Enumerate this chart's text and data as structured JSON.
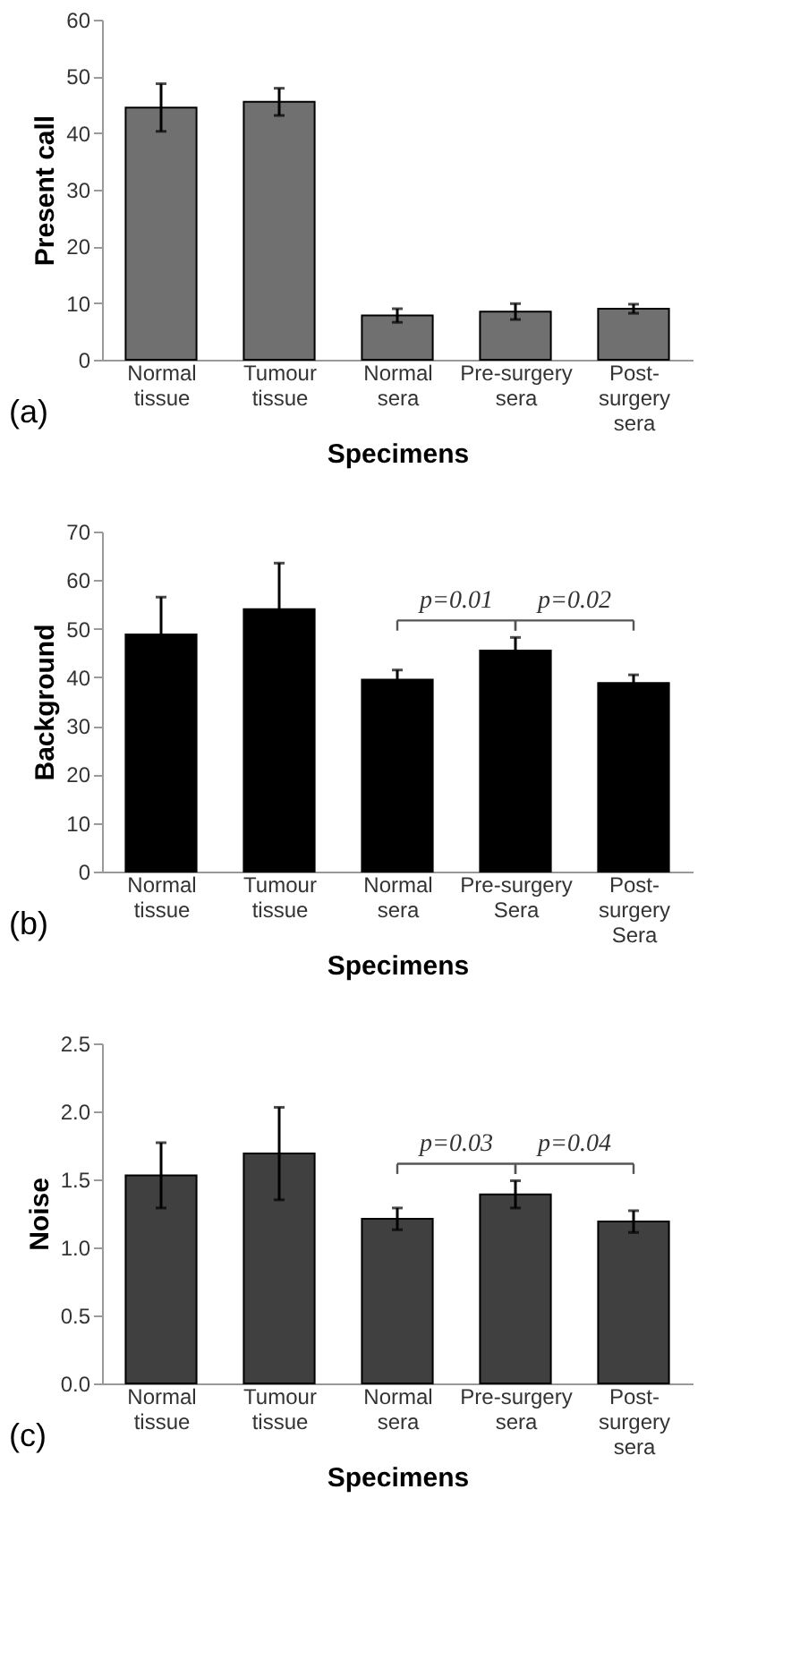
{
  "chart_data": [
    {
      "type": "bar",
      "xlabel": "Specimens",
      "ylabel": "Present call",
      "categories": [
        "Normal\ntissue",
        "Tumour\ntissue",
        "Normal\nsera",
        "Pre-surgery\nsera",
        "Post-\nsurgery\nsera"
      ],
      "values": [
        44.5,
        45.5,
        7.8,
        8.5,
        9.0
      ],
      "errors": [
        4.2,
        2.4,
        1.2,
        1.4,
        0.8
      ],
      "color": "#707070",
      "ylim": [
        0,
        60
      ],
      "yticks": [
        0,
        10,
        20,
        30,
        40,
        50,
        60
      ],
      "grid": false,
      "annotations": [
        "(a)"
      ]
    },
    {
      "type": "bar",
      "xlabel": "Specimens",
      "ylabel": "Background",
      "categories": [
        "Normal\ntissue",
        "Tumour\ntissue",
        "Normal\nsera",
        "Pre-surgery\nSera",
        "Post-\nsurgery\nSera"
      ],
      "values": [
        48.8,
        54.0,
        39.5,
        45.5,
        38.8
      ],
      "errors": [
        [
          48.8,
          56.5
        ],
        [
          54.0,
          63.5
        ],
        [
          39.5,
          41.5
        ],
        [
          45.5,
          48.2
        ],
        [
          38.8,
          40.5
        ]
      ],
      "color": "#000000",
      "ylim": [
        0,
        70
      ],
      "yticks": [
        0,
        10,
        20,
        30,
        40,
        50,
        60,
        70
      ],
      "grid": false,
      "annotations": [
        "p=0.01",
        "p=0.02",
        "(b)"
      ]
    },
    {
      "type": "bar",
      "xlabel": "Specimens",
      "ylabel": "Noise",
      "categories": [
        "Normal\ntissue",
        "Tumour\ntissue",
        "Normal\nsera",
        "Pre-surgery\nsera",
        "Post-\nsurgery\nsera"
      ],
      "values": [
        1.53,
        1.69,
        1.21,
        1.39,
        1.19
      ],
      "errors": [
        0.24,
        0.34,
        0.08,
        0.1,
        0.08
      ],
      "color": "#404040",
      "ylim": [
        0,
        2.5
      ],
      "yticks": [
        {
          "value": 0,
          "label": "0.0"
        },
        0.5,
        {
          "value": 1,
          "label": "1.0"
        },
        1.5,
        {
          "value": 2,
          "label": "2.0"
        },
        2.5
      ],
      "grid": false,
      "annotations": [
        "p=0.03",
        "p=0.04",
        "(c)"
      ]
    }
  ]
}
